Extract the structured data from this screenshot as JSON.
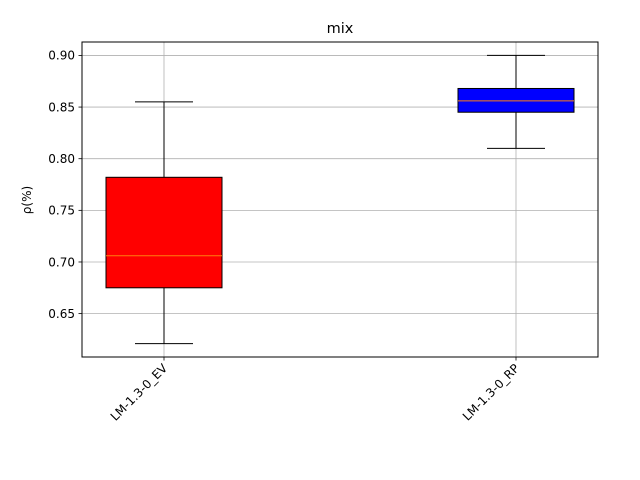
{
  "chart_data": {
    "type": "box",
    "title": "mix",
    "xlabel": "",
    "ylabel": "ρ(%)",
    "ylim": [
      0.608,
      0.913
    ],
    "yticks": [
      0.65,
      0.7,
      0.75,
      0.8,
      0.85,
      0.9
    ],
    "ytick_labels": [
      "0.65",
      "0.70",
      "0.75",
      "0.80",
      "0.85",
      "0.90"
    ],
    "grid": true,
    "categories": [
      "LM-1.3-0_EV",
      "LM-1.3-0_RP"
    ],
    "boxes": [
      {
        "whisker_low": 0.621,
        "q1": 0.675,
        "median": 0.706,
        "q3": 0.782,
        "whisker_high": 0.855,
        "color": "#ff0000"
      },
      {
        "whisker_low": 0.81,
        "q1": 0.845,
        "median": 0.856,
        "q3": 0.868,
        "whisker_high": 0.9,
        "color": "#0000ff"
      }
    ],
    "median_color": "#ff7f0e"
  }
}
